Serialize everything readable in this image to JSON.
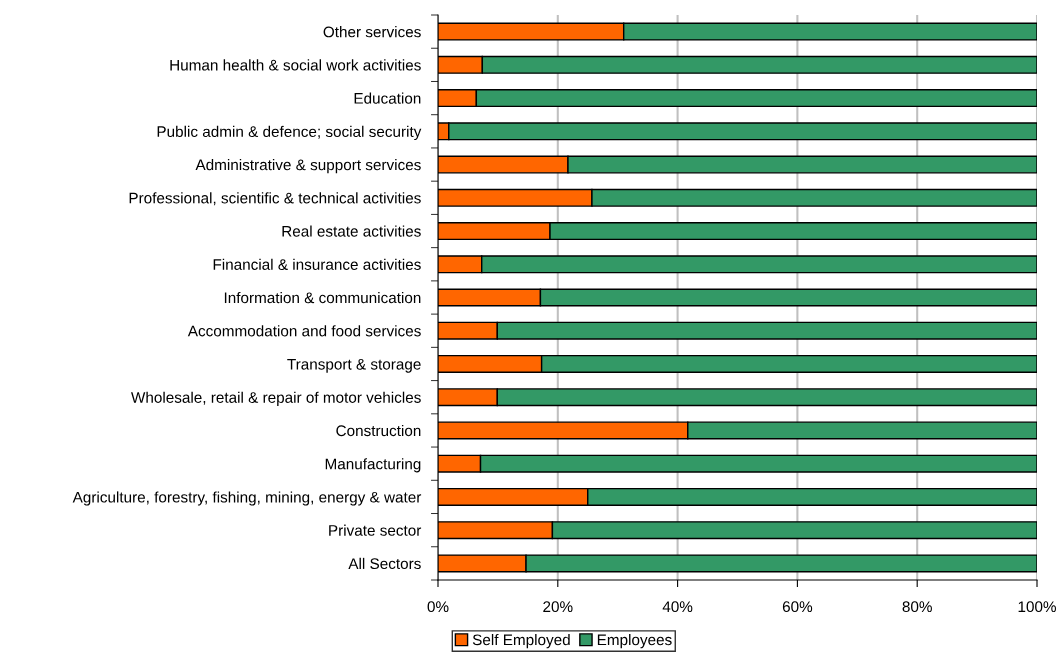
{
  "chart_data": {
    "type": "bar",
    "orientation": "horizontal",
    "stacked": true,
    "categories": [
      "Other services",
      "Human health & social work activities",
      "Education",
      "Public admin & defence; social security",
      "Administrative & support services",
      "Professional, scientific & technical activities",
      "Real estate activities",
      "Financial & insurance activities",
      "Information & communication",
      "Accommodation and food services",
      "Transport & storage",
      "Wholesale, retail & repair of motor vehicles",
      "Construction",
      "Manufacturing",
      "Agriculture, forestry, fishing, mining, energy & water",
      "Private sector",
      "All Sectors"
    ],
    "series": [
      {
        "name": "Self Employed",
        "color": "#ff6600",
        "values": [
          31.0,
          7.4,
          6.4,
          1.8,
          21.7,
          25.7,
          18.7,
          7.3,
          17.1,
          9.9,
          17.3,
          9.9,
          41.7,
          7.1,
          25.0,
          19.1,
          14.7
        ]
      },
      {
        "name": "Employees",
        "color": "#339966",
        "values": [
          69.0,
          92.6,
          93.6,
          98.2,
          78.3,
          74.3,
          81.3,
          92.7,
          82.9,
          90.1,
          82.7,
          90.1,
          58.3,
          92.9,
          75.0,
          80.9,
          85.3
        ]
      }
    ],
    "xlim": [
      0,
      100
    ],
    "xticks": [
      {
        "value": 0,
        "label": "0%"
      },
      {
        "value": 20,
        "label": "20%"
      },
      {
        "value": 40,
        "label": "40%"
      },
      {
        "value": 60,
        "label": "60%"
      },
      {
        "value": 80,
        "label": "80%"
      },
      {
        "value": 100,
        "label": "100%"
      }
    ],
    "grid": "x",
    "legend": "bottom"
  }
}
